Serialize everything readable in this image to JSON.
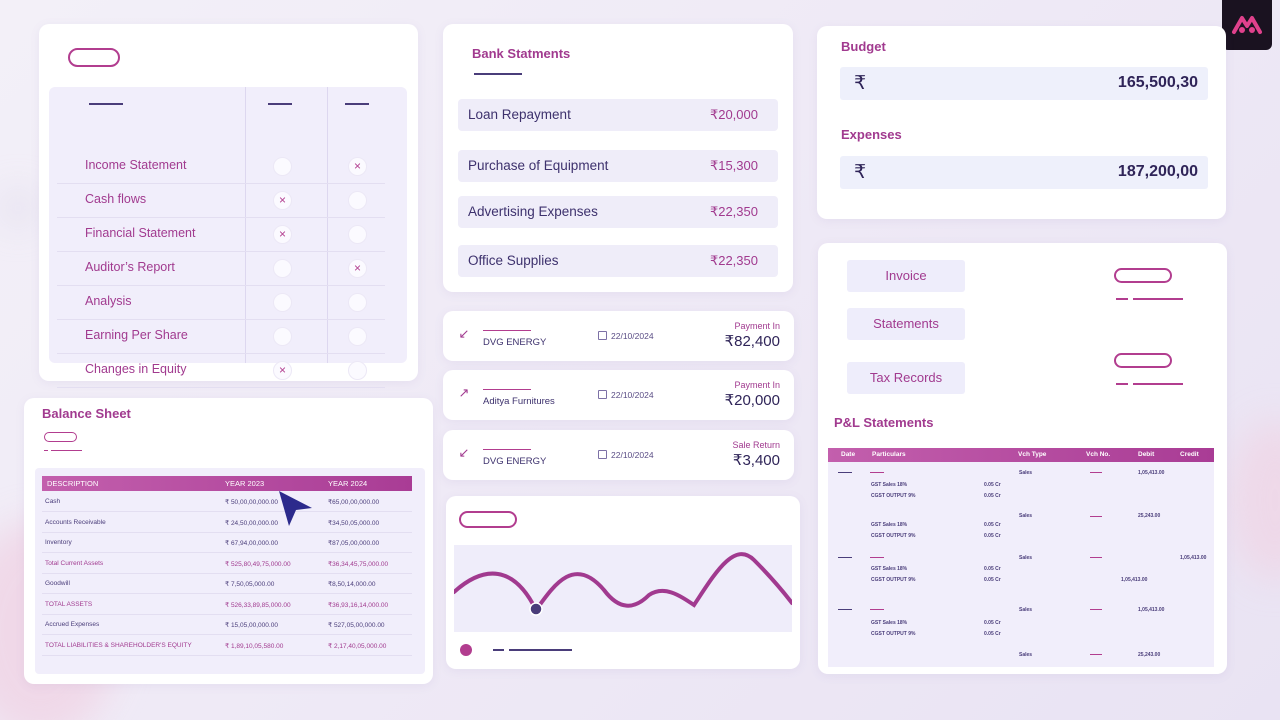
{
  "checklist": {
    "items": [
      {
        "label": "Income Statement",
        "col1": "",
        "col2": "×"
      },
      {
        "label": "Cash flows",
        "col1": "×",
        "col2": ""
      },
      {
        "label": "Financial Statement",
        "col1": "×",
        "col2": ""
      },
      {
        "label": "Auditor’s Report",
        "col1": "",
        "col2": "×"
      },
      {
        "label": "Analysis",
        "col1": "",
        "col2": ""
      },
      {
        "label": "Earning Per Share",
        "col1": "",
        "col2": ""
      },
      {
        "label": "Changes in Equity",
        "col1": "×",
        "col2": ""
      }
    ]
  },
  "bank": {
    "title": "Bank Statments",
    "rows": [
      {
        "label": "Loan Repayment",
        "amount": "₹20,000"
      },
      {
        "label": "Purchase of Equipment",
        "amount": "₹15,300"
      },
      {
        "label": "Advertising Expenses",
        "amount": "₹22,350"
      },
      {
        "label": "Office Supplies",
        "amount": "₹22,350"
      }
    ]
  },
  "transactions": [
    {
      "icon": "↙",
      "name": "DVG ENERGY",
      "date": "22/10/2024",
      "type": "Payment In",
      "amount": "₹82,400"
    },
    {
      "icon": "↗",
      "name": "Aditya Furnitures",
      "date": "22/10/2024",
      "type": "Payment In",
      "amount": "₹20,000"
    },
    {
      "icon": "↙",
      "name": "DVG ENERGY",
      "date": "22/10/2024",
      "type": "Sale Return",
      "amount": "₹3,400"
    }
  ],
  "budget": {
    "budget_label": "Budget",
    "budget_symbol": "₹",
    "budget_value": "165,500,30",
    "expenses_label": "Expenses",
    "expenses_symbol": "₹",
    "expenses_value": "187,200,00"
  },
  "documents": {
    "invoice": "Invoice",
    "statements": "Statements",
    "tax": "Tax Records"
  },
  "balance_sheet": {
    "title": "Balance Sheet",
    "headers": [
      "DESCRIPTION",
      "YEAR 2023",
      "YEAR 2024"
    ],
    "rows": [
      {
        "d": "Cash",
        "a": "₹ 50,00,00,000.00",
        "b": "₹65,00,00,000.00",
        "hl": false
      },
      {
        "d": "Accounts Receivable",
        "a": "₹ 24,50,00,000.00",
        "b": "₹34,50,05,000.00",
        "hl": false
      },
      {
        "d": "Inventory",
        "a": "₹ 67,94,00,000.00",
        "b": "₹87,05,00,000.00",
        "hl": false
      },
      {
        "d": "Total Current Assets",
        "a": "₹ 525,80,49,75,000.00",
        "b": "₹36,34,45,75,000.00",
        "hl": true
      },
      {
        "d": "Goodwill",
        "a": "₹ 7,50,05,000.00",
        "b": "₹8,50,14,000.00",
        "hl": false
      },
      {
        "d": "TOTAL ASSETS",
        "a": "₹ 526,33,89,85,000.00",
        "b": "₹36,93,16,14,000.00",
        "hl": true
      },
      {
        "d": "Accrued Expenses",
        "a": "₹ 15,05,00,000.00",
        "b": "₹ 527,05,00,000.00",
        "hl": false
      },
      {
        "d": "TOTAL LIABILITIES & SHAREHOLDER'S EQUITY",
        "a": "₹ 1,89,10,05,580.00",
        "b": "₹ 2,17,40,05,000.00",
        "hl": true
      }
    ]
  },
  "pl": {
    "title": "P&L Statements",
    "headers": [
      "Date",
      "Particulars",
      "Vch Type",
      "Vch No.",
      "Debit",
      "Credit"
    ],
    "sub1": "GST Sales 18%",
    "sub2": "CGST OUTPUT 9%",
    "cr": "0.05 Cr",
    "sales": "Sales",
    "v1": "1,05,413.00",
    "v2": "25,243.00"
  }
}
